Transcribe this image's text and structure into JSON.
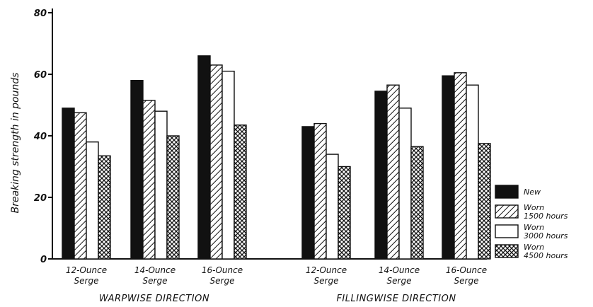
{
  "chart_data": {
    "type": "bar",
    "ylabel": "Breaking strength in pounds",
    "ylim": [
      0,
      80
    ],
    "yticks": [
      0,
      20,
      40,
      60,
      80
    ],
    "groups": [
      {
        "label": "WARPWISE DIRECTION",
        "categories": [
          "12-Ounce Serge",
          "14-Ounce Serge",
          "16-Ounce Serge"
        ]
      },
      {
        "label": "FILLINGWISE DIRECTION",
        "categories": [
          "12-Ounce Serge",
          "14-Ounce Serge",
          "16-Ounce Serge"
        ]
      }
    ],
    "categories": [
      "12-Ounce Serge",
      "14-Ounce Serge",
      "16-Ounce Serge",
      "12-Ounce Serge",
      "14-Ounce Serge",
      "16-Ounce Serge"
    ],
    "series": [
      {
        "name": "New",
        "fill": "solid",
        "values": [
          49,
          58,
          66,
          43,
          54.5,
          59.5
        ]
      },
      {
        "name": "Worn 1500 hours",
        "fill": "diagonal-hatch",
        "values": [
          47.5,
          51.5,
          63,
          44,
          56.5,
          60.5
        ]
      },
      {
        "name": "Worn 3000 hours",
        "fill": "white",
        "values": [
          38,
          48,
          61,
          34,
          49,
          56.5
        ]
      },
      {
        "name": "Worn 4500 hours",
        "fill": "cross-hatch",
        "values": [
          33.5,
          40,
          43.5,
          30,
          36.5,
          37.5
        ]
      }
    ],
    "legend": {
      "placement": "right",
      "entries": [
        {
          "line1": "New",
          "line2": ""
        },
        {
          "line1": "Worn",
          "line2": "1500 hours"
        },
        {
          "line1": "Worn",
          "line2": "3000 hours"
        },
        {
          "line1": "Worn",
          "line2": "4500 hours"
        }
      ]
    },
    "grid": false,
    "colors": {
      "ink": "#111111",
      "background": "#ffffff"
    }
  }
}
